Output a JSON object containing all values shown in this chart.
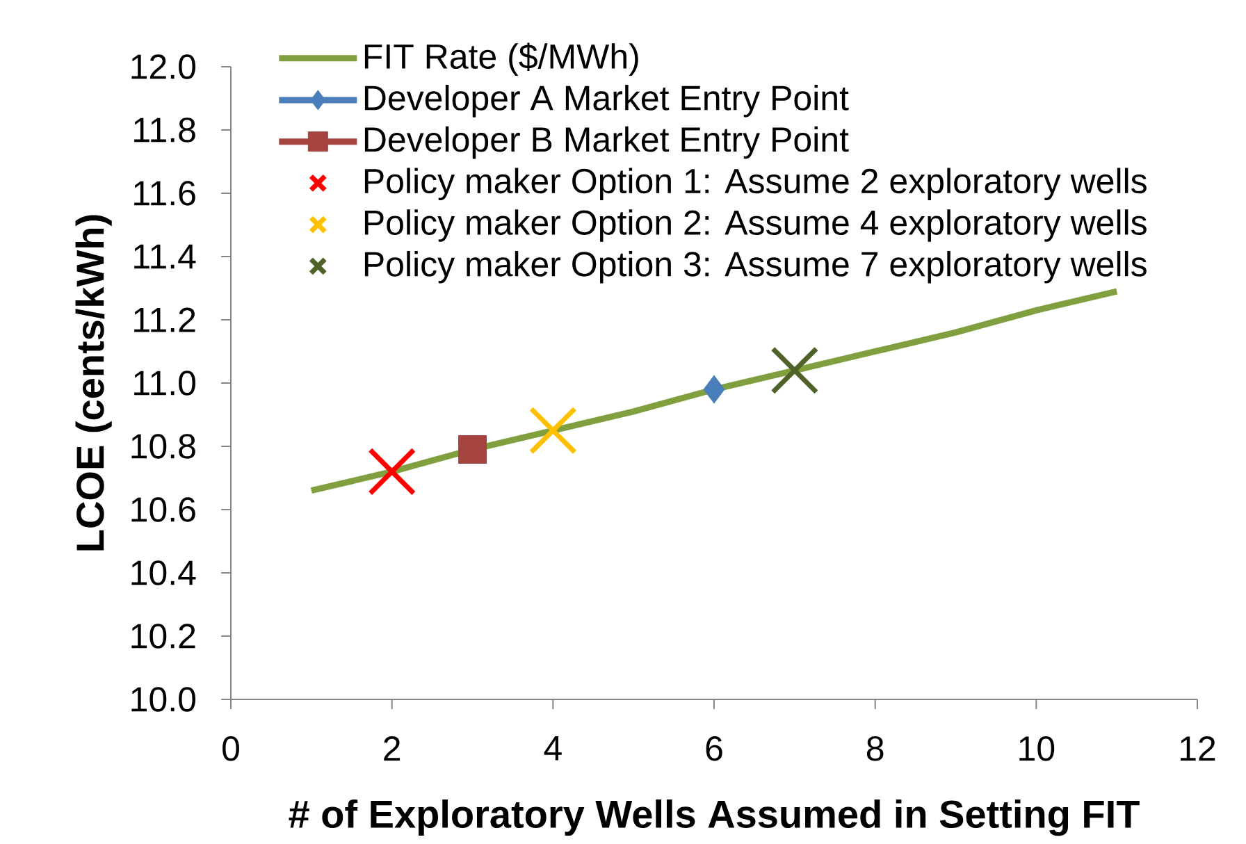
{
  "chart_data": {
    "type": "line",
    "xlabel": "# of Exploratory Wells Assumed in Setting FIT",
    "ylabel": "LCOE (cents/kWh)",
    "xlim": [
      0,
      12
    ],
    "xticks": [
      0,
      2,
      4,
      6,
      8,
      10,
      12
    ],
    "ylim": [
      10,
      12
    ],
    "yticks": [
      {
        "value": 10,
        "label": "10.0"
      },
      {
        "value": 10.2,
        "label": "10.2"
      },
      {
        "value": 10.4,
        "label": "10.4"
      },
      {
        "value": 10.6,
        "label": "10.6"
      },
      {
        "value": 10.8,
        "label": "10.8"
      },
      {
        "value": 11,
        "label": "11.0"
      },
      {
        "value": 11.2,
        "label": "11.2"
      },
      {
        "value": 11.4,
        "label": "11.4"
      },
      {
        "value": 11.6,
        "label": "11.6"
      },
      {
        "value": 11.8,
        "label": "11.8"
      },
      {
        "value": 12,
        "label": "12.0"
      }
    ],
    "legend": "top left",
    "series": [
      {
        "name": "FIT Rate ($/MWh)",
        "color": "#80a040",
        "marker": "none",
        "x": [
          1,
          2,
          3,
          4,
          5,
          6,
          7,
          8,
          9,
          10,
          11
        ],
        "values": [
          10.66,
          10.72,
          10.79,
          10.85,
          10.91,
          10.98,
          11.04,
          11.1,
          11.16,
          11.23,
          11.29
        ]
      },
      {
        "name": "Developer A Market Entry Point",
        "color": "#4a7ebb",
        "marker": "diamond",
        "x": [
          6
        ],
        "values": [
          10.98
        ]
      },
      {
        "name": "Developer B Market Entry Point",
        "color": "#a5433f",
        "marker": "square",
        "x": [
          3
        ],
        "values": [
          10.79
        ]
      },
      {
        "name": "Policy maker Option 1: Assume 2 exploratory wells",
        "type": "scatter",
        "color": "#ff0000",
        "marker": "cross",
        "x": [
          2
        ],
        "values": [
          10.72
        ]
      },
      {
        "name": "Policy maker Option 2: Assume 4 exploratory wells",
        "type": "scatter",
        "color": "#ffc000",
        "marker": "cross",
        "x": [
          4
        ],
        "values": [
          10.85
        ]
      },
      {
        "name": "Policy maker Option 3: Assume 7 exploratory wells",
        "type": "scatter",
        "color": "#4f6228",
        "marker": "cross",
        "x": [
          7
        ],
        "values": [
          11.04
        ]
      }
    ]
  }
}
